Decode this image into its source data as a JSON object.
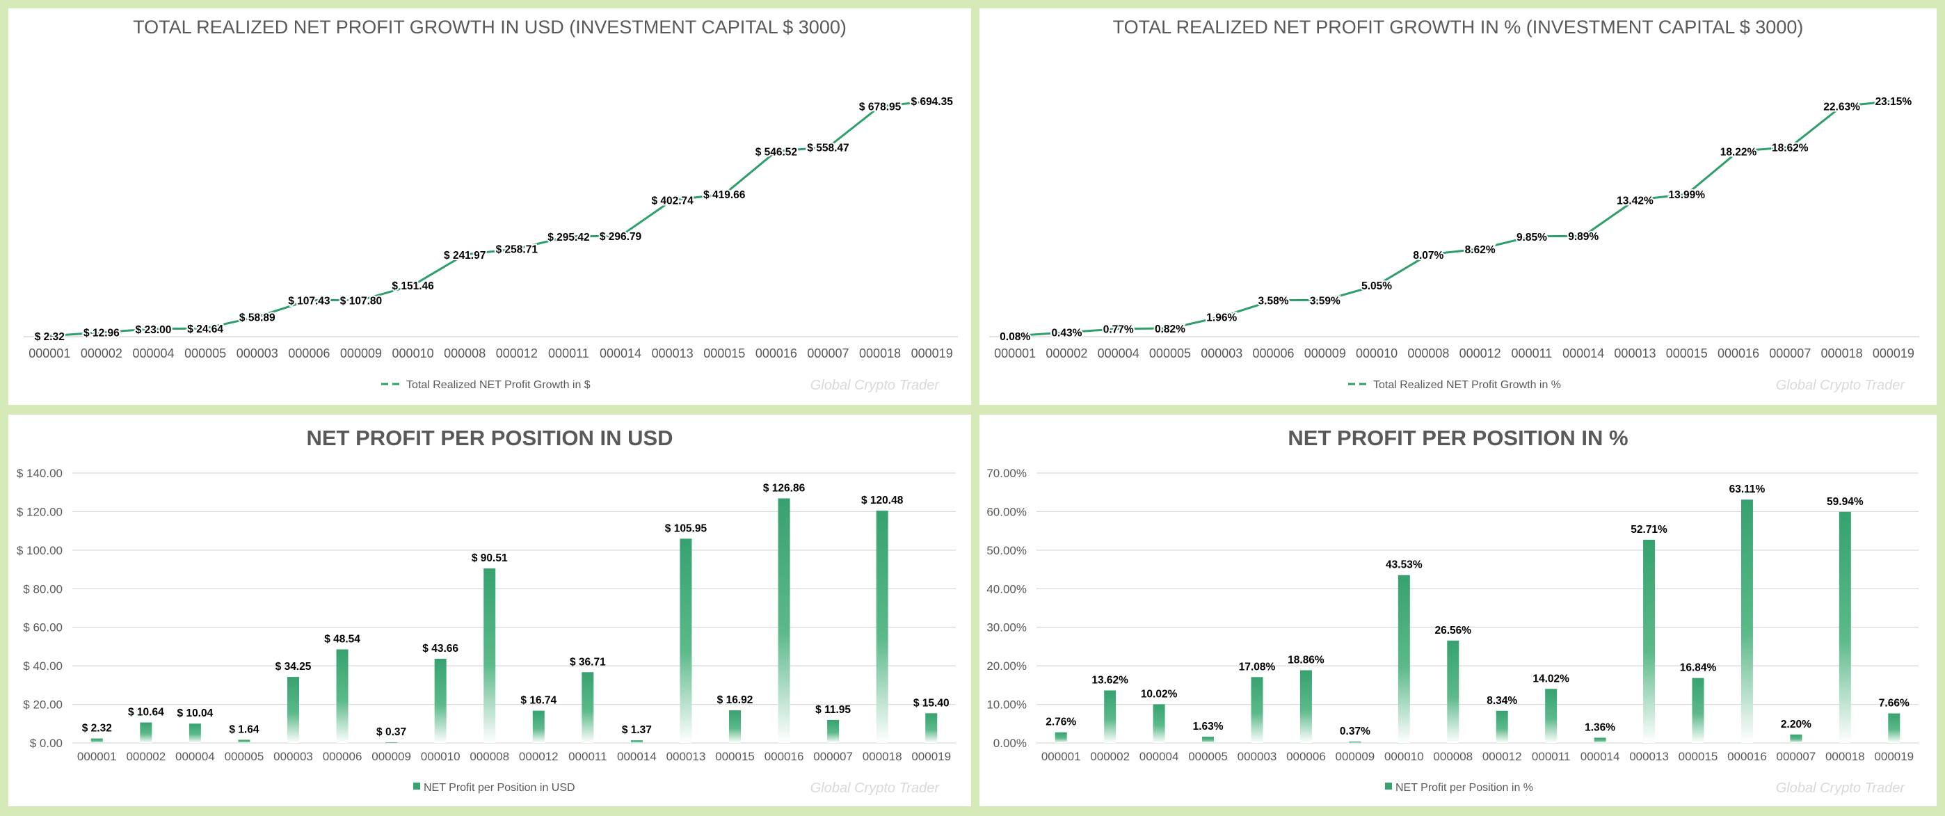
{
  "chart_data": [
    {
      "type": "line",
      "title": "TOTAL REALIZED NET PROFIT GROWTH IN USD (INVESTMENT CAPITAL $ 3000)",
      "categories": [
        "000001",
        "000002",
        "000004",
        "000005",
        "000003",
        "000006",
        "000009",
        "000010",
        "000008",
        "000012",
        "000011",
        "000014",
        "000013",
        "000015",
        "000016",
        "000007",
        "000018",
        "000019"
      ],
      "series": [
        {
          "name": "Total Realized NET Profit Growth in $",
          "values": [
            2.32,
            12.96,
            23.0,
            24.64,
            58.89,
            107.43,
            107.8,
            151.46,
            241.97,
            258.71,
            295.42,
            296.79,
            402.74,
            419.66,
            546.52,
            558.47,
            678.95,
            694.35
          ]
        }
      ],
      "data_labels": [
        "$ 2.32",
        "$ 12.96",
        "$ 23.00",
        "$ 24.64",
        "$ 58.89",
        "$ 107.43",
        "$ 107.80",
        "$ 151.46",
        "$ 241.97",
        "$ 258.71",
        "$ 295.42",
        "$ 296.79",
        "$ 402.74",
        "$ 419.66",
        "$ 546.52",
        "$ 558.47",
        "$ 678.95",
        "$ 694.35"
      ],
      "ylim": [
        0,
        750
      ],
      "legend_position": "bottom",
      "watermark": "Global Crypto Trader",
      "color": "#2e9e6b"
    },
    {
      "type": "line",
      "title": "TOTAL REALIZED NET PROFIT GROWTH IN % (INVESTMENT CAPITAL $ 3000)",
      "categories": [
        "000001",
        "000002",
        "000004",
        "000005",
        "000003",
        "000006",
        "000009",
        "000010",
        "000008",
        "000012",
        "000011",
        "000014",
        "000013",
        "000015",
        "000016",
        "000007",
        "000018",
        "000019"
      ],
      "series": [
        {
          "name": "Total Realized NET Profit Growth in %",
          "values": [
            0.08,
            0.43,
            0.77,
            0.82,
            1.96,
            3.58,
            3.59,
            5.05,
            8.07,
            8.62,
            9.85,
            9.89,
            13.42,
            13.99,
            18.22,
            18.62,
            22.63,
            23.15
          ]
        }
      ],
      "data_labels": [
        "0.08%",
        "0.43%",
        "0.77%",
        "0.82%",
        "1.96%",
        "3.58%",
        "3.59%",
        "5.05%",
        "8.07%",
        "8.62%",
        "9.85%",
        "9.89%",
        "13.42%",
        "13.99%",
        "18.22%",
        "18.62%",
        "22.63%",
        "23.15%"
      ],
      "ylim": [
        0,
        25
      ],
      "legend_position": "bottom",
      "watermark": "Global Crypto Trader",
      "color": "#2e9e6b"
    },
    {
      "type": "bar",
      "title": "NET PROFIT PER POSITION IN USD",
      "categories": [
        "000001",
        "000002",
        "000004",
        "000005",
        "000003",
        "000006",
        "000009",
        "000010",
        "000008",
        "000012",
        "000011",
        "000014",
        "000013",
        "000015",
        "000016",
        "000007",
        "000018",
        "000019"
      ],
      "series": [
        {
          "name": "NET Profit per Position in USD",
          "values": [
            2.32,
            10.64,
            10.04,
            1.64,
            34.25,
            48.54,
            0.37,
            43.66,
            90.51,
            16.74,
            36.71,
            1.37,
            105.95,
            16.92,
            126.86,
            11.95,
            120.48,
            15.4
          ]
        }
      ],
      "data_labels": [
        "$ 2.32",
        "$ 10.64",
        "$ 10.04",
        "$ 1.64",
        "$ 34.25",
        "$ 48.54",
        "$ 0.37",
        "$ 43.66",
        "$ 90.51",
        "$ 16.74",
        "$ 36.71",
        "$ 1.37",
        "$ 105.95",
        "$ 16.92",
        "$ 126.86",
        "$ 11.95",
        "$ 120.48",
        "$ 15.40"
      ],
      "yticks": [
        "$ 0.00",
        "$ 20.00",
        "$ 40.00",
        "$ 60.00",
        "$ 80.00",
        "$ 100.00",
        "$ 120.00",
        "$ 140.00"
      ],
      "ylim": [
        0,
        140
      ],
      "grid": true,
      "legend_position": "bottom",
      "watermark": "Global Crypto Trader",
      "color": "#2e9e6b"
    },
    {
      "type": "bar",
      "title": "NET PROFIT PER POSITION IN %",
      "categories": [
        "000001",
        "000002",
        "000004",
        "000005",
        "000003",
        "000006",
        "000009",
        "000010",
        "000008",
        "000012",
        "000011",
        "000014",
        "000013",
        "000015",
        "000016",
        "000007",
        "000018",
        "000019"
      ],
      "series": [
        {
          "name": "NET Profit per Position in %",
          "values": [
            2.76,
            13.62,
            10.02,
            1.63,
            17.08,
            18.86,
            0.37,
            43.53,
            26.56,
            8.34,
            14.02,
            1.36,
            52.71,
            16.84,
            63.11,
            2.2,
            59.94,
            7.66
          ]
        }
      ],
      "data_labels": [
        "2.76%",
        "13.62%",
        "10.02%",
        "1.63%",
        "17.08%",
        "18.86%",
        "0.37%",
        "43.53%",
        "26.56%",
        "8.34%",
        "14.02%",
        "1.36%",
        "52.71%",
        "16.84%",
        "63.11%",
        "2.20%",
        "59.94%",
        "7.66%"
      ],
      "yticks": [
        "0.00%",
        "10.00%",
        "20.00%",
        "30.00%",
        "40.00%",
        "50.00%",
        "60.00%",
        "70.00%"
      ],
      "ylim": [
        0,
        70
      ],
      "grid": true,
      "legend_position": "bottom",
      "watermark": "Global Crypto Trader",
      "color": "#2e9e6b"
    }
  ]
}
